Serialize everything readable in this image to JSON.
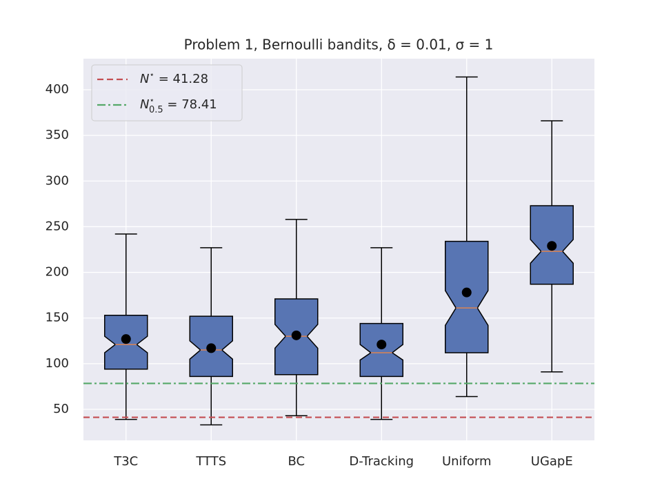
{
  "chart_data": {
    "type": "box",
    "title": "Problem 1, Bernoulli bandits, δ = 0.01, σ = 1",
    "categories": [
      "T3C",
      "TTTS",
      "BC",
      "D-Tracking",
      "Uniform",
      "UGapE"
    ],
    "whislo": [
      39,
      33,
      43,
      39,
      64,
      91
    ],
    "q1": [
      94,
      86,
      88,
      86,
      112,
      187
    ],
    "notch_low": [
      112,
      105,
      117,
      104,
      142,
      210
    ],
    "median": [
      121,
      115,
      130,
      112,
      161,
      223
    ],
    "notch_high": [
      130,
      125,
      143,
      121,
      180,
      236
    ],
    "q3": [
      153,
      152,
      171,
      144,
      234,
      273
    ],
    "whishi": [
      242,
      227,
      258,
      227,
      414,
      366
    ],
    "means": [
      127,
      117,
      131,
      121,
      178,
      229
    ],
    "box_color": "#5875b3",
    "median_color": "#dd8452",
    "mean_color": "#000000",
    "reference_lines": [
      {
        "label": {
          "base": "N",
          "sup": "⋆",
          "sub": "",
          "tail": " = 41.28"
        },
        "value": 41.28,
        "color": "#c44e52",
        "dash": "dashed"
      },
      {
        "label": {
          "base": "N",
          "sup": "⋆",
          "sub": "0.5",
          "tail": " = 78.41"
        },
        "value": 78.41,
        "color": "#55a868",
        "dash": "dashdot"
      }
    ],
    "ylim": [
      16,
      434
    ],
    "yticks": [
      50,
      100,
      150,
      200,
      250,
      300,
      350,
      400
    ],
    "grid": true,
    "legend": "upper left"
  }
}
